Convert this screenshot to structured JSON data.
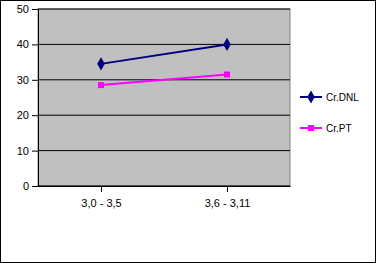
{
  "chart_data": {
    "type": "line",
    "categories": [
      "3,0 - 3,5",
      "3,6 - 3,11"
    ],
    "series": [
      {
        "name": "Cr.DNL",
        "color": "#000080",
        "marker": "diamond",
        "values": [
          34.5,
          40
        ]
      },
      {
        "name": "Cr.PT",
        "color": "#ff00ff",
        "marker": "square",
        "values": [
          28.5,
          31.5
        ]
      }
    ],
    "ylim": [
      0,
      50
    ],
    "yticks": [
      0,
      10,
      20,
      30,
      40,
      50
    ],
    "grid": true,
    "legend": "right"
  }
}
